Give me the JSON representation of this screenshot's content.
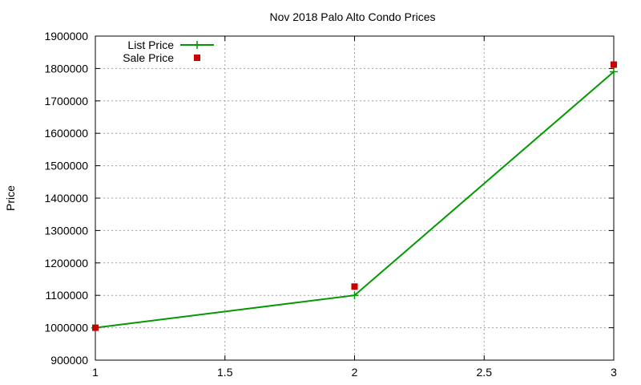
{
  "chart_data": {
    "type": "line",
    "title": "Nov 2018 Palo Alto Condo Prices",
    "xlabel": "",
    "ylabel": "Price",
    "xlim": [
      1,
      3
    ],
    "ylim": [
      900000,
      1900000
    ],
    "x_ticks": [
      1,
      1.5,
      2,
      2.5,
      3
    ],
    "x_tick_labels": [
      "1",
      "1.5",
      "2",
      "2.5",
      "3"
    ],
    "y_ticks": [
      900000,
      1000000,
      1100000,
      1200000,
      1300000,
      1400000,
      1500000,
      1600000,
      1700000,
      1800000,
      1900000
    ],
    "y_tick_labels": [
      "900000",
      "1000000",
      "1100000",
      "1200000",
      "1300000",
      "1400000",
      "1500000",
      "1600000",
      "1700000",
      "1800000",
      "1900000"
    ],
    "grid": true,
    "legend_position": "top-left",
    "series": [
      {
        "name": "List Price",
        "style": "line with plus markers",
        "color": "#009900",
        "x": [
          1,
          2,
          3
        ],
        "y": [
          1000000,
          1100000,
          1790000
        ]
      },
      {
        "name": "Sale Price",
        "style": "square markers",
        "color": "#cc0000",
        "x": [
          1,
          2,
          3
        ],
        "y": [
          1000000,
          1127000,
          1812000
        ]
      }
    ]
  }
}
